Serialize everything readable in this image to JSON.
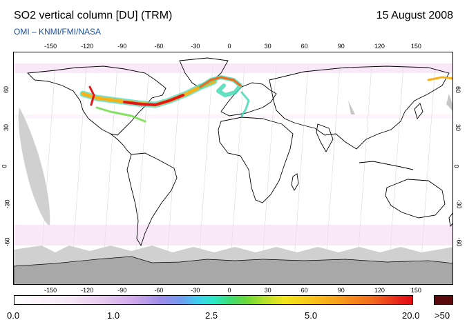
{
  "header": {
    "title": "SO2 vertical column [DU] (TRM)",
    "date": "15 August 2008",
    "credit": "OMI  –  KNMI/FMI/NASA"
  },
  "map": {
    "lon_ticks_top": [
      "-150",
      "-120",
      "-90",
      "-60",
      "-30",
      "0",
      "30",
      "60",
      "90",
      "120",
      "150"
    ],
    "lon_ticks_bottom": [
      "-150",
      "-120",
      "-90",
      "-60",
      "-30",
      "0",
      "30",
      "60",
      "90",
      "120",
      "150"
    ],
    "lat_ticks_left": [
      "60",
      "30",
      "0",
      "-30",
      "-60"
    ],
    "lat_ticks_right": [
      "60",
      "30",
      "0",
      "-30",
      "-60"
    ],
    "colors": {
      "land_outline": "#000000",
      "no_data": "#d0d0d0",
      "antarctica": "#a8a8a8",
      "plume_high": "#e01818",
      "plume_mid": "#f7b21b",
      "plume_low": "#3cd8b0"
    }
  },
  "colorbar": {
    "labels": [
      "0.0",
      "1.0",
      "2.5",
      "5.0",
      "20.0"
    ],
    "overflow_label": ">50",
    "overflow_color": "#5a0a0a"
  }
}
